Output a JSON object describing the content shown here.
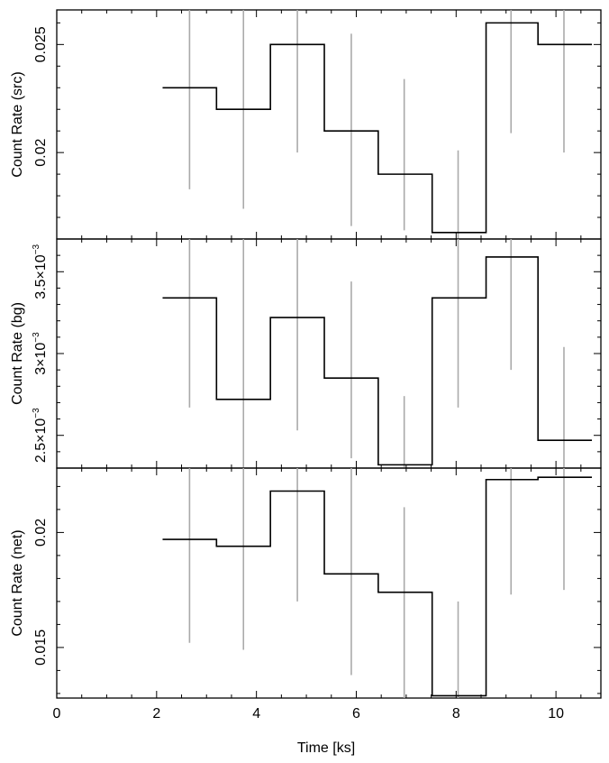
{
  "chart_data": {
    "type": "line",
    "x_label": "Time [ks]",
    "x_ticks": [
      0,
      2,
      4,
      6,
      8,
      10
    ],
    "x_tick_labels": [
      "0",
      "2",
      "4",
      "6",
      "8",
      "10"
    ],
    "xlim": [
      0,
      10.9
    ],
    "bins": [
      {
        "x0": 2.12,
        "x1": 3.2
      },
      {
        "x0": 3.2,
        "x1": 4.28
      },
      {
        "x0": 4.28,
        "x1": 5.36
      },
      {
        "x0": 5.36,
        "x1": 6.44
      },
      {
        "x0": 6.44,
        "x1": 7.52
      },
      {
        "x0": 7.52,
        "x1": 8.6
      },
      {
        "x0": 8.6,
        "x1": 9.64
      },
      {
        "x0": 9.64,
        "x1": 10.72
      }
    ],
    "error_bar_x": [
      2.66,
      3.74,
      4.82,
      5.9,
      6.96,
      8.04,
      9.1,
      10.16
    ],
    "panels": [
      {
        "name": "src",
        "ylabel": "Count Rate (src)",
        "ylim": [
          0.016,
          0.0266
        ],
        "y_ticks": [
          0.02,
          0.025
        ],
        "y_tick_labels": [
          {
            "base": "0.02"
          },
          {
            "base": "0.025"
          }
        ],
        "y_minor": 0.001,
        "values": [
          0.023,
          0.022,
          0.025,
          0.021,
          0.019,
          0.0163,
          0.026,
          0.025
        ],
        "err_low": [
          0.0183,
          0.0174,
          0.02,
          0.0166,
          0.0164,
          0.016,
          0.0209,
          0.02
        ],
        "err_high": [
          0.0266,
          0.0266,
          0.0266,
          0.0255,
          0.0234,
          0.0201,
          0.0266,
          0.0266
        ]
      },
      {
        "name": "bg",
        "ylabel": "Count Rate (bg)",
        "ylim": [
          0.0023,
          0.0037
        ],
        "y_ticks": [
          0.0025,
          0.003,
          0.0035
        ],
        "y_tick_labels": [
          {
            "base": "2.5×10",
            "exp": "−3"
          },
          {
            "base": "3×10",
            "exp": "−3"
          },
          {
            "base": "3.5×10",
            "exp": "−3"
          }
        ],
        "y_minor": 0.0001,
        "values": [
          0.00334,
          0.00272,
          0.00322,
          0.00285,
          0.00232,
          0.00334,
          0.00359,
          0.00247
        ],
        "err_low": [
          0.00267,
          0.0023,
          0.00253,
          0.00236,
          0.0023,
          0.00267,
          0.0029,
          0.0023
        ],
        "err_high": [
          0.0037,
          0.0037,
          0.0037,
          0.00344,
          0.00274,
          0.0037,
          0.0037,
          0.00304
        ]
      },
      {
        "name": "net",
        "ylabel": "Count Rate (net)",
        "ylim": [
          0.0128,
          0.0228
        ],
        "y_ticks": [
          0.015,
          0.02
        ],
        "y_tick_labels": [
          {
            "base": "0.015"
          },
          {
            "base": "0.02"
          }
        ],
        "y_minor": 0.001,
        "values": [
          0.0197,
          0.0194,
          0.0218,
          0.0182,
          0.0174,
          0.0129,
          0.0223,
          0.0224
        ],
        "err_low": [
          0.0152,
          0.0149,
          0.017,
          0.0138,
          0.0128,
          0.0128,
          0.0173,
          0.0175
        ],
        "err_high": [
          0.0228,
          0.0228,
          0.0228,
          0.0228,
          0.0211,
          0.017,
          0.0228,
          0.0228
        ]
      }
    ]
  }
}
